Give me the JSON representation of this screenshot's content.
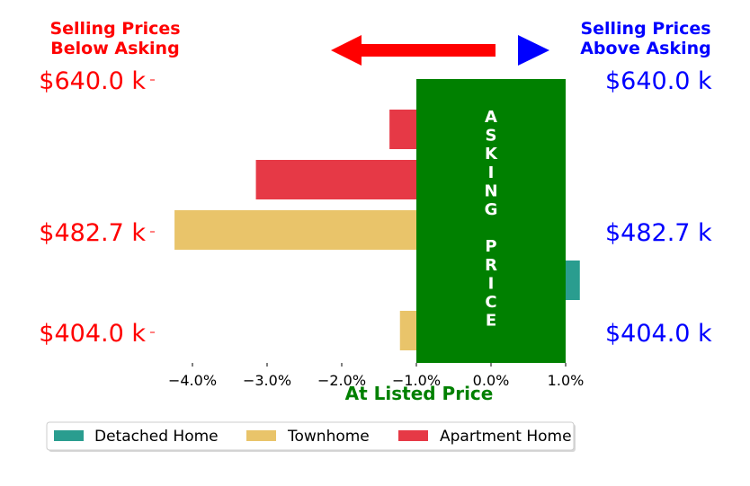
{
  "header": {
    "left_line1": "Selling Prices",
    "left_line2": "Below Asking",
    "right_line1": "Selling Prices",
    "right_line2": "Above Asking"
  },
  "price_labels": [
    "$640.0 k",
    "$482.7 k",
    "$404.0 k"
  ],
  "banner_text": "ASKING PRICE",
  "colors": {
    "below": "#ff0000",
    "above": "#0000ff",
    "banner": "#008000",
    "detached": "#2a9d8f",
    "townhome": "#e9c46a",
    "apartment": "#e63946"
  },
  "chart_data": {
    "type": "bar",
    "orientation": "horizontal",
    "xlabel": "At Listed Price",
    "xlim": [
      -4.4,
      1.2
    ],
    "xticks": [
      "−4.0%",
      "−3.0%",
      "−2.0%",
      "−1.0%",
      "0.0%",
      "1.0%"
    ],
    "xtick_values": [
      -4,
      -3,
      -2,
      -1,
      0,
      1
    ],
    "bars": [
      {
        "series": "Apartment Home",
        "value": -1.36
      },
      {
        "series": "Apartment Home",
        "value": -3.15
      },
      {
        "series": "Townhome",
        "value": -4.24
      },
      {
        "series": "Detached Home",
        "value": 1.19
      },
      {
        "series": "Townhome",
        "value": -1.22
      }
    ],
    "asking_price_band": [
      -1.0,
      1.0
    ],
    "legend": [
      "Detached Home",
      "Townhome",
      "Apartment Home"
    ],
    "legend_position": "bottom"
  }
}
